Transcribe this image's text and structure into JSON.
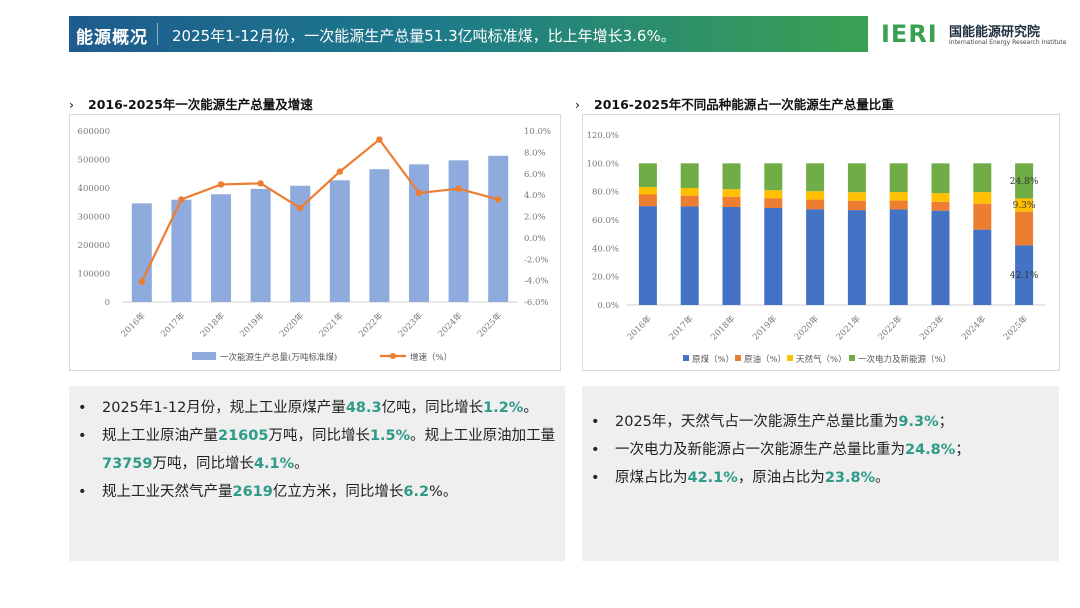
{
  "header": {
    "tag": "能源概况",
    "summary": "2025年1-12月份，一次能源生产总量51.3亿吨标准煤，比上年增长3.6%。"
  },
  "logo": {
    "mark": "IERI",
    "name_cn": "国能能源研究院",
    "name_en": "International Energy Research Institute"
  },
  "colors": {
    "bar_blue": "#8faadc",
    "line_orange": "#ed7d31",
    "coal": "#4472c4",
    "oil": "#ed7d31",
    "gas": "#ffc000",
    "renew": "#70ad47",
    "highlight": "#2e9b88"
  },
  "left_section": {
    "arrow": "›",
    "title": "2016-2025年一次能源生产总量及增速"
  },
  "right_section": {
    "arrow": "›",
    "title": "2016-2025年不同品种能源占一次能源生产总量比重"
  },
  "chart_data": [
    {
      "type": "bar",
      "categories": [
        "2016年",
        "2017年",
        "2018年",
        "2019年",
        "2020年",
        "2021年",
        "2022年",
        "2023年",
        "2024年",
        "2025年"
      ],
      "series": [
        {
          "name": "一次能源生产总量(万吨标准煤)",
          "type": "bar",
          "axis": "left",
          "values": [
            346000,
            359000,
            378000,
            397000,
            408000,
            427000,
            466000,
            483000,
            497000,
            513000
          ]
        },
        {
          "name": "增速（%）",
          "type": "line",
          "axis": "right",
          "values": [
            -4.1,
            3.6,
            5.0,
            5.1,
            2.8,
            6.2,
            9.2,
            4.2,
            4.6,
            3.6
          ]
        }
      ],
      "y_left": {
        "min": 0,
        "max": 600000,
        "ticks": [
          "0",
          "100000",
          "200000",
          "300000",
          "400000",
          "500000",
          "600000"
        ]
      },
      "y_right": {
        "min": -6,
        "max": 10,
        "ticks": [
          "-6.0%",
          "-4.0%",
          "-2.0%",
          "0.0%",
          "2.0%",
          "4.0%",
          "6.0%",
          "8.0%",
          "10.0%"
        ]
      },
      "legend_position": "bottom",
      "grid": false
    },
    {
      "type": "bar",
      "stacked": true,
      "categories": [
        "2016年",
        "2017年",
        "2018年",
        "2019年",
        "2020年",
        "2021年",
        "2022年",
        "2023年",
        "2024年",
        "2025年"
      ],
      "series": [
        {
          "name": "原煤（%）",
          "values": [
            69.8,
            69.6,
            69.2,
            68.5,
            67.6,
            67.0,
            67.4,
            66.6,
            53.2,
            42.1
          ]
        },
        {
          "name": "原油（%）",
          "values": [
            8.2,
            7.6,
            7.2,
            6.9,
            6.8,
            6.6,
            6.3,
            6.2,
            18.3,
            23.8
          ]
        },
        {
          "name": "天然气（%）",
          "values": [
            5.3,
            5.4,
            5.4,
            5.6,
            5.9,
            6.0,
            6.0,
            6.2,
            8.2,
            9.3
          ]
        },
        {
          "name": "一次电力及新能源（%）",
          "values": [
            16.7,
            17.4,
            18.2,
            19.0,
            19.7,
            20.4,
            20.3,
            21.0,
            20.3,
            24.8
          ]
        }
      ],
      "data_labels": [
        "42.1%",
        "9.3%",
        "24.8%"
      ],
      "y_axis": {
        "min": 0,
        "max": 120,
        "ticks": [
          "0.0%",
          "20.0%",
          "40.0%",
          "60.0%",
          "80.0%",
          "100.0%",
          "120.0%"
        ]
      },
      "legend_position": "bottom",
      "grid": false
    }
  ],
  "left_box": {
    "items": [
      [
        {
          "t": "2025年1-12月份，规上工业原煤产量"
        },
        {
          "t": "48.3",
          "h": true
        },
        {
          "t": "亿吨，同比增长"
        },
        {
          "t": "1.2%",
          "h": true
        },
        {
          "t": "。"
        }
      ],
      [
        {
          "t": "规上工业原油产量"
        },
        {
          "t": "21605",
          "h": true
        },
        {
          "t": "万吨，同比增长"
        },
        {
          "t": "1.5%",
          "h": true
        },
        {
          "t": "。规上工业原油加工量"
        },
        {
          "t": "73759",
          "h": true
        },
        {
          "t": "万吨，同比增长"
        },
        {
          "t": "4.1%",
          "h": true
        },
        {
          "t": "。"
        }
      ],
      [
        {
          "t": "规上工业天然气产量"
        },
        {
          "t": "2619",
          "h": true
        },
        {
          "t": "亿立方米，同比增长"
        },
        {
          "t": "6.2",
          "h": true
        },
        {
          "t": "%。"
        }
      ]
    ]
  },
  "right_box": {
    "items": [
      [
        {
          "t": "2025年，天然气占一次能源生产总量比重为"
        },
        {
          "t": "9.3%",
          "h": true
        },
        {
          "t": "；"
        }
      ],
      [
        {
          "t": "一次电力及新能源占一次能源生产总量比重为"
        },
        {
          "t": "24.8%",
          "h": true
        },
        {
          "t": "；"
        }
      ],
      [
        {
          "t": "原煤占比为"
        },
        {
          "t": "42.1%",
          "h": true
        },
        {
          "t": "，原油占比为"
        },
        {
          "t": "23.8%",
          "h": true
        },
        {
          "t": "。"
        }
      ]
    ]
  }
}
